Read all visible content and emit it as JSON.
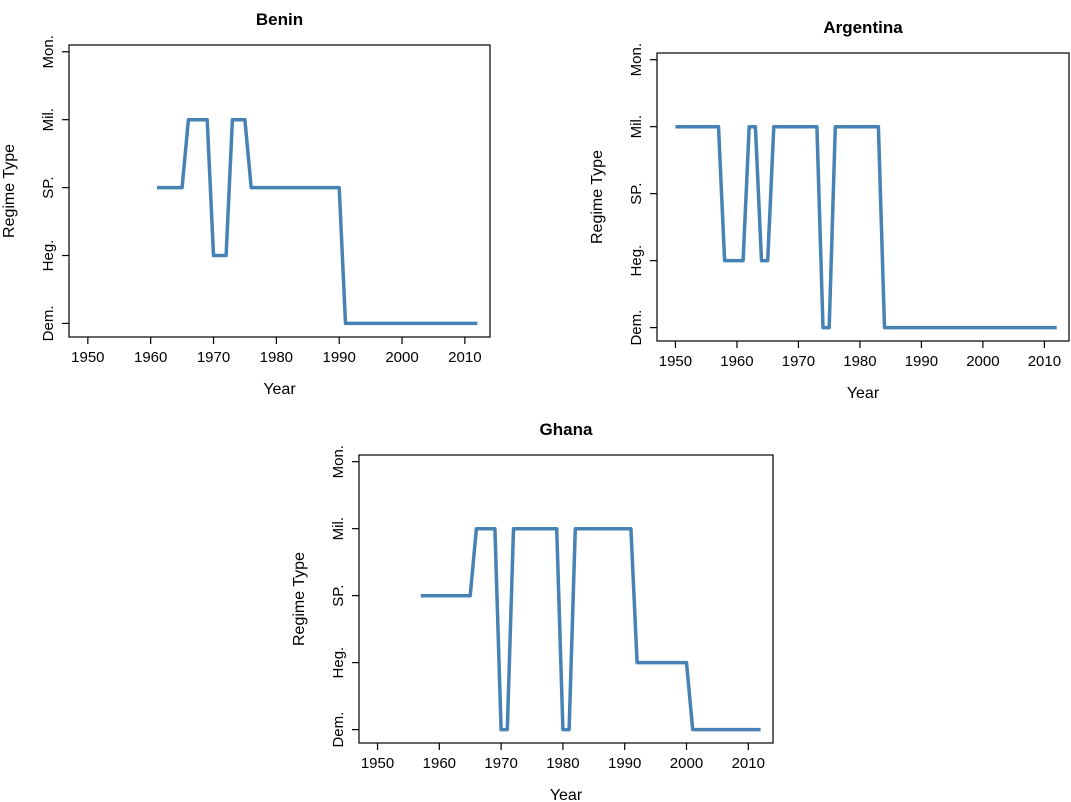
{
  "colors": {
    "series": "#4682b4",
    "axis": "#000000"
  },
  "chart_data": [
    {
      "type": "line",
      "title": "Benin",
      "xlabel": "Year",
      "ylabel": "Regime Type",
      "xlim": [
        1947,
        2014
      ],
      "ylim": [
        0.8,
        5.1
      ],
      "x_ticks": [
        1950,
        1960,
        1970,
        1980,
        1990,
        2000,
        2010
      ],
      "y_ticks": [
        1,
        2,
        3,
        4,
        5
      ],
      "y_tick_labels": [
        "Dem.",
        "Heg.",
        "SP.",
        "Mil.",
        "Mon."
      ],
      "grid": false,
      "series": [
        {
          "x": [
            1961,
            1965,
            1966,
            1969,
            1970,
            1972,
            1973,
            1975,
            1976,
            1990,
            1991,
            2012
          ],
          "y": [
            3,
            3,
            4,
            4,
            2,
            2,
            4,
            4,
            3,
            3,
            1,
            1
          ]
        }
      ]
    },
    {
      "type": "line",
      "title": "Argentina",
      "xlabel": "Year",
      "ylabel": "Regime Type",
      "xlim": [
        1947,
        2014
      ],
      "ylim": [
        0.8,
        5.1
      ],
      "x_ticks": [
        1950,
        1960,
        1970,
        1980,
        1990,
        2000,
        2010
      ],
      "y_ticks": [
        1,
        2,
        3,
        4,
        5
      ],
      "y_tick_labels": [
        "Dem.",
        "Heg.",
        "SP.",
        "Mil.",
        "Mon."
      ],
      "grid": false,
      "series": [
        {
          "x": [
            1950,
            1957,
            1958,
            1961,
            1962,
            1963,
            1964,
            1965,
            1966,
            1973,
            1974,
            1975,
            1976,
            1983,
            1984,
            2012
          ],
          "y": [
            4,
            4,
            2,
            2,
            4,
            4,
            2,
            2,
            4,
            4,
            1,
            1,
            4,
            4,
            1,
            1
          ]
        }
      ]
    },
    {
      "type": "line",
      "title": "Ghana",
      "xlabel": "Year",
      "ylabel": "Regime Type",
      "xlim": [
        1947,
        2014
      ],
      "ylim": [
        0.8,
        5.1
      ],
      "x_ticks": [
        1950,
        1960,
        1970,
        1980,
        1990,
        2000,
        2010
      ],
      "y_ticks": [
        1,
        2,
        3,
        4,
        5
      ],
      "y_tick_labels": [
        "Dem.",
        "Heg.",
        "SP.",
        "Mil.",
        "Mon."
      ],
      "grid": false,
      "series": [
        {
          "x": [
            1957,
            1965,
            1966,
            1969,
            1970,
            1971,
            1972,
            1979,
            1980,
            1981,
            1982,
            1991,
            1992,
            2000,
            2001,
            2012
          ],
          "y": [
            3,
            3,
            4,
            4,
            1,
            1,
            4,
            4,
            1,
            1,
            4,
            4,
            2,
            2,
            1,
            1
          ]
        }
      ]
    }
  ]
}
